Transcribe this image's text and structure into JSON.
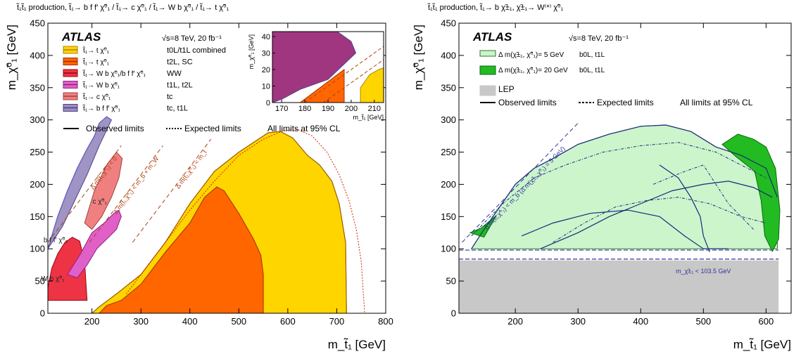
{
  "chart_data": [
    {
      "type": "area",
      "process_title": "t̃₁t̃₁ production, t̃₁→ b f f′ χ̃⁰₁ / t̃₁→ c χ̃⁰₁ / t̃₁→ W b χ̃⁰₁ / t̃₁→ t χ̃⁰₁",
      "atlas_label": "ATLAS",
      "energy_label": "√s=8 TeV, 20 fb⁻¹",
      "xlabel": "m_t̃₁ [GeV]",
      "ylabel": "m_χ̃⁰₁ [GeV]",
      "xlim": [
        110,
        800
      ],
      "ylim": [
        0,
        450
      ],
      "x_ticks": [
        "200",
        "300",
        "400",
        "500",
        "600",
        "700",
        "800"
      ],
      "y_ticks": [
        "0",
        "50",
        "100",
        "150",
        "200",
        "250",
        "300",
        "350",
        "400",
        "450"
      ],
      "legend": [
        {
          "process": "t̃₁→ t χ̃⁰₁",
          "analysis": "t0L/t1L combined",
          "color": "#ffd500",
          "border": "#b08000"
        },
        {
          "process": "t̃₁→ t χ̃⁰₁",
          "analysis": "t2L, SC",
          "color": "#ff6600",
          "border": "#a03000"
        },
        {
          "process": "t̃₁→ W b χ̃⁰₁/b f f′ χ̃⁰₁",
          "analysis": "WW",
          "color": "#ee3344",
          "border": "#990011"
        },
        {
          "process": "t̃₁→ W b χ̃⁰₁",
          "analysis": "t1L, t2L",
          "color": "#e060c8",
          "border": "#902080"
        },
        {
          "process": "t̃₁→ c χ̃⁰₁",
          "analysis": "tc",
          "color": "#f08080",
          "border": "#a04040"
        },
        {
          "process": "t̃₁→ b f f′ χ̃⁰₁",
          "analysis": "tc, t1L",
          "color": "#9a8ec0",
          "border": "#50408a"
        }
      ],
      "line_legend": {
        "observed": "Observed limits",
        "expected": "Expected limits",
        "cl": "All limits at 95% CL"
      },
      "kinematic_lines": [
        {
          "label": "Δ m(t̃₁,χ̃⁰₁) < 0",
          "x": [
            110,
            260
          ],
          "y": [
            110,
            260
          ]
        },
        {
          "label": "Δ m(t̃₁,χ̃⁰₁) < m_b + m_W",
          "x": [
            195,
            345
          ],
          "y": [
            110,
            260
          ]
        },
        {
          "label": "Δ m(t̃₁,χ̃⁰₁) < m_t",
          "x": [
            283,
            443
          ],
          "y": [
            110,
            270
          ]
        }
      ],
      "region_labels": [
        "c χ̃⁰₁",
        "b f f′ χ̃⁰₁",
        "W b χ̃⁰₁"
      ],
      "regions": [
        {
          "name": "t0L/t1L combined",
          "x": [
            200,
            215,
            250,
            300,
            350,
            400,
            450,
            500,
            540,
            560,
            585,
            610,
            640,
            665,
            690,
            705,
            718,
            720,
            200
          ],
          "y": [
            0,
            10,
            30,
            60,
            110,
            170,
            220,
            250,
            270,
            280,
            282,
            272,
            245,
            230,
            205,
            170,
            110,
            0,
            0
          ]
        },
        {
          "name": "t2L, SC",
          "x": [
            215,
            230,
            260,
            300,
            350,
            400,
            430,
            455,
            470,
            500,
            530,
            545,
            550,
            550,
            215
          ],
          "y": [
            0,
            12,
            20,
            45,
            95,
            140,
            180,
            196,
            190,
            155,
            115,
            90,
            60,
            0,
            0
          ]
        },
        {
          "name": "WW",
          "x": [
            110,
            118,
            130,
            145,
            160,
            175,
            185,
            190,
            110
          ],
          "y": [
            40,
            70,
            92,
            110,
            118,
            112,
            80,
            20,
            20
          ]
        },
        {
          "name": "t1L, t2L",
          "x": [
            150,
            175,
            200,
            225,
            245,
            255,
            260,
            250,
            230,
            210,
            190,
            170,
            150
          ],
          "y": [
            60,
            90,
            125,
            140,
            155,
            160,
            150,
            130,
            115,
            100,
            75,
            55,
            60
          ]
        },
        {
          "name": "tc",
          "x": [
            185,
            205,
            230,
            250,
            262,
            255,
            240,
            220,
            200,
            185
          ],
          "y": [
            140,
            190,
            230,
            250,
            240,
            210,
            180,
            150,
            130,
            140
          ]
        },
        {
          "name": "tc, t1L",
          "x": [
            110,
            130,
            150,
            170,
            190,
            205,
            215,
            230,
            240,
            215,
            190,
            165,
            140,
            110
          ],
          "y": [
            100,
            150,
            190,
            225,
            255,
            275,
            295,
            305,
            300,
            260,
            215,
            175,
            135,
            100
          ]
        }
      ],
      "observed_tc_t1L_line": {
        "x": [
          110,
          130,
          150,
          170,
          190,
          205,
          215,
          230,
          240
        ],
        "y": [
          100,
          150,
          190,
          225,
          255,
          275,
          295,
          305,
          300
        ]
      },
      "observed_boundary_line": {
        "x": [
          200,
          215,
          250,
          300,
          350,
          400,
          450,
          500,
          540,
          560,
          585,
          610,
          640,
          665,
          690,
          705,
          718,
          720
        ],
        "y": [
          0,
          10,
          30,
          60,
          110,
          170,
          220,
          250,
          270,
          280,
          282,
          272,
          245,
          230,
          205,
          170,
          110,
          0
        ]
      },
      "expected_boundary_line": {
        "x": [
          270,
          340,
          400,
          450,
          500,
          550,
          590,
          620,
          650,
          680,
          705,
          725,
          740,
          750,
          757
        ],
        "y": [
          30,
          100,
          160,
          205,
          245,
          270,
          283,
          285,
          275,
          250,
          215,
          175,
          130,
          80,
          0
        ]
      },
      "inset": {
        "xlim": [
          166,
          214
        ],
        "ylim": [
          0,
          43
        ],
        "x_ticks": [
          "170",
          "180",
          "190",
          "200",
          "210"
        ],
        "y_ticks": [
          "0",
          "10",
          "20",
          "30",
          "40"
        ],
        "xlabel": "m_t̃₁ [GeV]",
        "ylabel": "m_χ̃⁰₁ [GeV]",
        "regions": [
          {
            "name": "tc, t1L",
            "x": [
              166,
              166,
              194,
              200,
              202,
              190,
              178,
              170,
              166
            ],
            "y": [
              0,
              43,
              43,
              37,
              30,
              14,
              8,
              2,
              0
            ]
          },
          {
            "name": "t2L, SC",
            "x": [
              178,
              197,
              197,
              178
            ],
            "y": [
              0,
              0,
              20,
              0
            ]
          },
          {
            "name": "t0L/t1L combined",
            "x": [
              204,
              208,
              212,
              214,
              214,
              204
            ],
            "y": [
              9,
              17,
              20,
              21,
              0,
              0
            ]
          }
        ]
      }
    },
    {
      "type": "area",
      "process_title": "t̃₁t̃₁ production, t̃₁→ b χ̃±₁, χ̃±₁→ W⁽*⁾ χ̃⁰₁",
      "atlas_label": "ATLAS",
      "energy_label": "√s=8 TeV, 20 fb⁻¹",
      "xlabel": "m_t̃₁ [GeV]",
      "ylabel": "m_χ̃⁰₁ [GeV]",
      "xlim": [
        110,
        640
      ],
      "ylim": [
        0,
        450
      ],
      "x_ticks": [
        "200",
        "300",
        "400",
        "500",
        "600"
      ],
      "y_ticks": [
        "0",
        "50",
        "100",
        "150",
        "200",
        "250",
        "300",
        "350",
        "400",
        "450"
      ],
      "legend": [
        {
          "label": "Δ m(χ̃±₁, χ̃⁰₁)= 5 GeV",
          "analysis": "b0L, t1L",
          "color": "#ccf5cc",
          "border": "#2a7a2a"
        },
        {
          "label": "Δ m(χ̃±₁, χ̃⁰₁)= 20 GeV",
          "analysis": "b0L, t1L",
          "color": "#22bb22",
          "border": "#116611"
        },
        {
          "label": "LEP",
          "analysis": "",
          "color": "#c8c8c8",
          "border": "#c8c8c8"
        }
      ],
      "line_legend": {
        "observed": "Observed limits",
        "expected": "Expected limits",
        "cl": "All limits at 95% CL"
      },
      "kinematic_line": {
        "label": "Δ m(t̃₁,χ̃⁰₁) < m_b (Δ m(χ̃±₁,χ̃⁰₁) = 5 GeV)",
        "x": [
          115,
          300
        ],
        "y": [
          110,
          295
        ]
      },
      "lep_band": {
        "ylim": [
          0,
          82
        ]
      },
      "lep_label": "m_χ̃±₁ < 103.5 GeV",
      "lep_lines_y": [
        98,
        84
      ],
      "regions": [
        {
          "name": "dm5",
          "x": [
            130,
            150,
            175,
            200,
            230,
            260,
            300,
            350,
            400,
            440,
            480,
            520,
            560,
            600,
            618,
            618,
            130
          ],
          "y": [
            100,
            130,
            165,
            200,
            225,
            240,
            262,
            278,
            290,
            292,
            282,
            258,
            245,
            225,
            180,
            100,
            100
          ]
        },
        {
          "name": "dm20",
          "x": [
            530,
            555,
            580,
            600,
            615,
            622,
            620,
            610,
            598,
            592,
            582,
            552,
            530
          ],
          "y": [
            262,
            278,
            270,
            258,
            225,
            160,
            115,
            96,
            120,
            175,
            220,
            243,
            262
          ]
        },
        {
          "name": "dm20-small",
          "x": [
            128,
            145,
            165,
            170,
            150,
            128
          ],
          "y": [
            125,
            132,
            148,
            152,
            118,
            125
          ]
        }
      ],
      "observed_lines": [
        {
          "x": [
            130,
            150,
            175,
            200,
            230,
            260,
            300,
            350,
            400,
            440,
            480,
            520,
            560,
            600,
            618
          ],
          "y": [
            100,
            130,
            165,
            200,
            225,
            240,
            262,
            278,
            290,
            292,
            282,
            258,
            245,
            225,
            180
          ]
        },
        {
          "x": [
            240,
            300,
            350,
            400,
            450,
            500,
            540,
            580,
            610
          ],
          "y": [
            100,
            125,
            150,
            170,
            190,
            200,
            205,
            195,
            180
          ]
        },
        {
          "x": [
            210,
            260,
            320,
            380,
            430,
            470,
            500,
            540
          ],
          "y": [
            120,
            140,
            155,
            160,
            150,
            120,
            100,
            100
          ]
        },
        {
          "x": [
            430,
            460,
            480,
            495,
            500,
            510
          ],
          "y": [
            230,
            210,
            180,
            150,
            120,
            95
          ]
        }
      ],
      "expected_lines": [
        {
          "x": [
            130,
            180,
            230,
            280,
            340,
            400,
            460,
            520,
            560,
            600
          ],
          "y": [
            120,
            170,
            210,
            230,
            250,
            260,
            265,
            250,
            230,
            210
          ]
        },
        {
          "x": [
            260,
            310,
            360,
            410,
            460,
            510,
            560,
            600
          ],
          "y": [
            110,
            140,
            165,
            175,
            180,
            170,
            150,
            140
          ]
        },
        {
          "x": [
            420,
            470,
            500,
            520,
            540,
            560,
            580
          ],
          "y": [
            200,
            220,
            230,
            200,
            170,
            150,
            130
          ]
        }
      ]
    }
  ]
}
